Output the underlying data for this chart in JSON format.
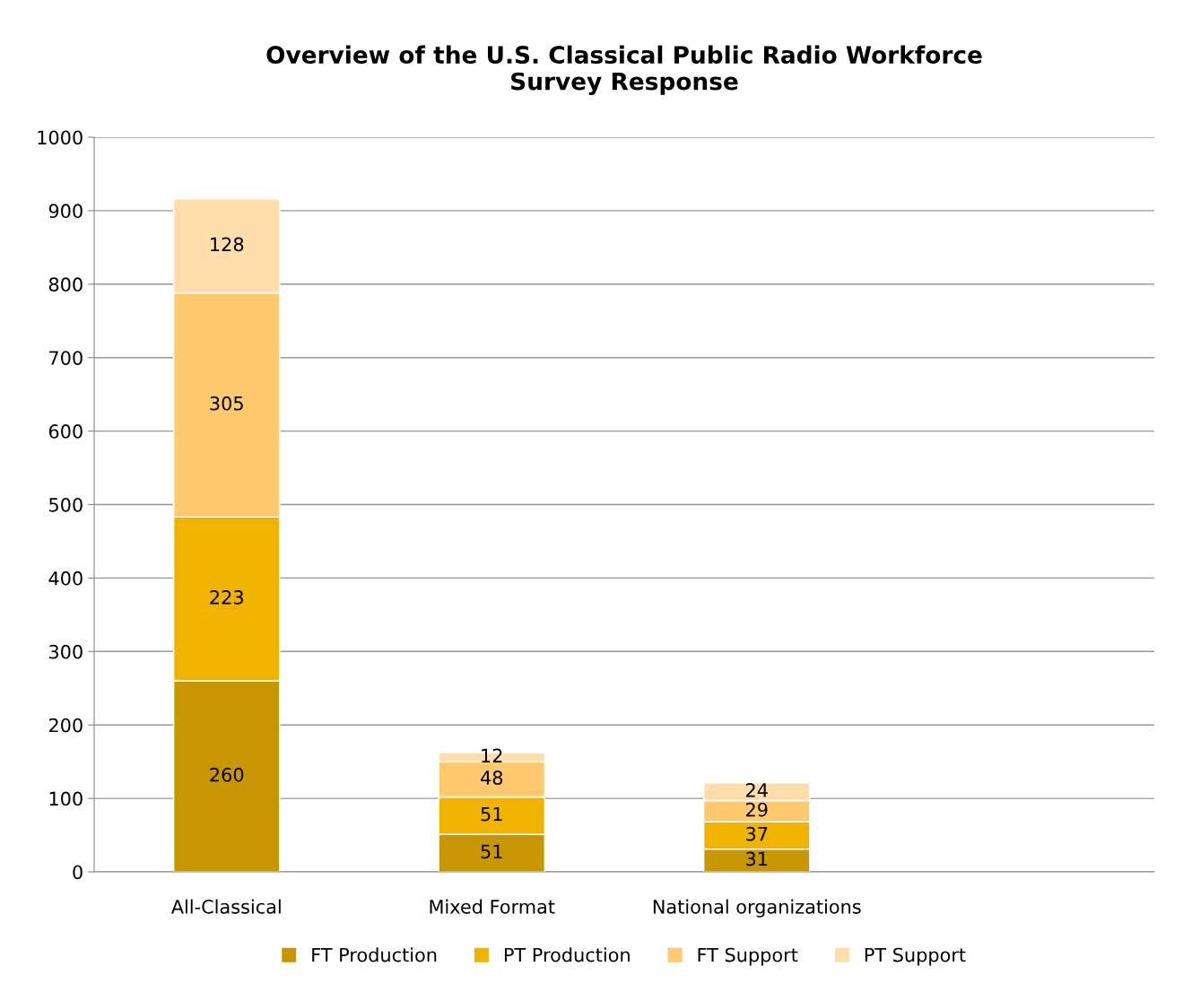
{
  "chart_data": {
    "type": "bar",
    "title": "Overview of the U.S. Classical Public Radio Workforce\nSurvey Response",
    "stacked": true,
    "categories": [
      "All-Classical",
      "Mixed Format",
      "National organizations",
      null
    ],
    "series": [
      {
        "name": "FT Production",
        "color": "#c89600",
        "values": [
          260,
          51,
          31,
          null
        ]
      },
      {
        "name": "PT Production",
        "color": "#f0b400",
        "values": [
          223,
          51,
          37,
          null
        ]
      },
      {
        "name": "FT Support",
        "color": "#ffc96e",
        "values": [
          305,
          48,
          29,
          null
        ]
      },
      {
        "name": "PT Support",
        "color": "#ffdeab",
        "values": [
          128,
          12,
          24,
          null
        ]
      }
    ],
    "ylim": [
      0,
      1000
    ],
    "yticks": [
      0,
      100,
      200,
      300,
      400,
      500,
      600,
      700,
      800,
      900,
      1000
    ],
    "grid": "y",
    "legend": "bottom",
    "data_labels": true
  }
}
